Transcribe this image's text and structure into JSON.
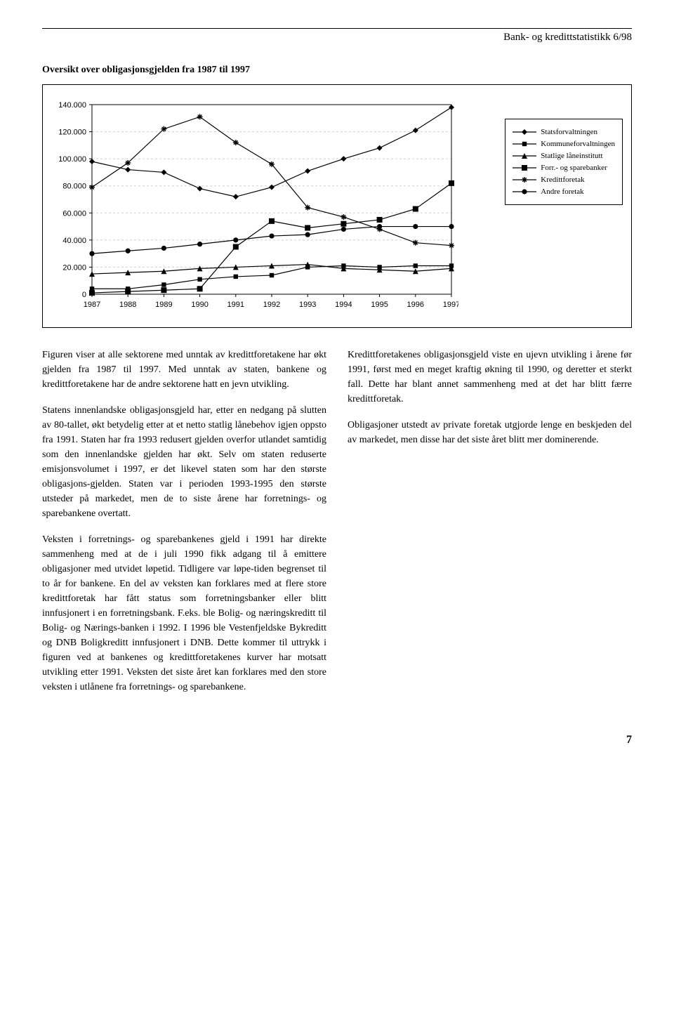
{
  "header": {
    "running_title": "Bank- og kredittstatistikk 6/98"
  },
  "chart": {
    "title": "Oversikt over obligasjonsgjelden fra 1987 til 1997",
    "type": "line",
    "x_categories": [
      "1987",
      "1988",
      "1989",
      "1990",
      "1991",
      "1992",
      "1993",
      "1994",
      "1995",
      "1996",
      "1997"
    ],
    "y_ticks": [
      0,
      20000,
      40000,
      60000,
      80000,
      100000,
      120000,
      140000
    ],
    "y_tick_labels": [
      "0",
      "20.000",
      "40.000",
      "60.000",
      "80.000",
      "100.000",
      "120.000",
      "140.000"
    ],
    "ylim": [
      0,
      140000
    ],
    "grid_color": "#d0d0d0",
    "axis_color": "#000000",
    "background_color": "#ffffff",
    "line_width": 1.2,
    "marker_size": 6,
    "series": [
      {
        "key": "stats",
        "label": "Statsforvaltningen",
        "marker": "diamond",
        "color": "#000000",
        "values": [
          98000,
          92000,
          90000,
          78000,
          72000,
          79000,
          91000,
          100000,
          108000,
          121000,
          138000
        ]
      },
      {
        "key": "komm",
        "label": "Kommuneforvaltningen",
        "marker": "square",
        "color": "#000000",
        "values": [
          4000,
          4000,
          7000,
          11000,
          13000,
          14000,
          20000,
          21000,
          20000,
          21000,
          21000
        ]
      },
      {
        "key": "statl",
        "label": "Statlige låneinstitutt",
        "marker": "triangle",
        "color": "#000000",
        "values": [
          15000,
          16000,
          17000,
          19000,
          20000,
          21000,
          22000,
          19000,
          18000,
          17000,
          19000
        ]
      },
      {
        "key": "forr",
        "label": "Forr.- og sparebanker",
        "marker": "squareLg",
        "color": "#000000",
        "values": [
          1000,
          2000,
          3000,
          4000,
          35000,
          54000,
          49000,
          52000,
          55000,
          63000,
          82000
        ]
      },
      {
        "key": "kred",
        "label": "Kredittforetak",
        "marker": "asterisk",
        "color": "#000000",
        "values": [
          79000,
          97000,
          122000,
          131000,
          112000,
          96000,
          64000,
          57000,
          48000,
          38000,
          36000
        ]
      },
      {
        "key": "andre",
        "label": "Andre foretak",
        "marker": "circle",
        "color": "#000000",
        "values": [
          30000,
          32000,
          34000,
          37000,
          40000,
          43000,
          44000,
          48000,
          50000,
          50000,
          50000
        ]
      }
    ],
    "legend_position": "right"
  },
  "body": {
    "left": [
      "Figuren viser at alle sektorene med unntak av kredittforetakene har økt gjelden fra 1987 til 1997. Med unntak av staten, bankene og kredittforetakene har de andre sektorene hatt en jevn utvikling.",
      "Statens innenlandske obligasjonsgjeld har, etter en nedgang på slutten av 80-tallet, økt betydelig etter at et netto statlig lånebehov igjen oppsto fra 1991. Staten har fra 1993 redusert gjelden overfor utlandet samtidig som den innenlandske gjelden har økt. Selv om staten reduserte emisjonsvolumet i 1997, er det likevel staten som har den største obligasjons-gjelden. Staten var i perioden 1993-1995 den største utsteder på markedet, men de to siste årene har forretnings- og sparebankene overtatt.",
      "Veksten i forretnings- og sparebankenes gjeld i 1991 har direkte sammenheng med at de i juli 1990 fikk adgang til å emittere obligasjoner med utvidet løpetid. Tidligere var løpe-tiden begrenset til to år for bankene. En del av veksten kan forklares med at flere store kredittforetak har fått status som forretningsbanker eller blitt innfusjonert i en forretningsbank. F.eks. ble Bolig- og næringskreditt til Bolig- og Nærings-banken i 1992. I 1996 ble Vestenfjeldske Bykreditt og DNB Boligkreditt innfusjonert i DNB. Dette kommer til uttrykk i figuren ved at bankenes og kredittforetakenes kurver har motsatt utvikling etter 1991. Veksten det siste året kan forklares med den store veksten i utlånene fra forretnings- og sparebankene."
    ],
    "right": [
      "Kredittforetakenes obligasjonsgjeld viste en ujevn utvikling i årene før 1991, først med en meget kraftig økning til 1990, og deretter et sterkt fall. Dette har blant annet sammenheng med at det har blitt færre kredittforetak.",
      "Obligasjoner utstedt av private foretak utgjorde lenge en beskjeden del av markedet, men disse har det siste året blitt mer dominerende."
    ]
  },
  "page_number": "7"
}
